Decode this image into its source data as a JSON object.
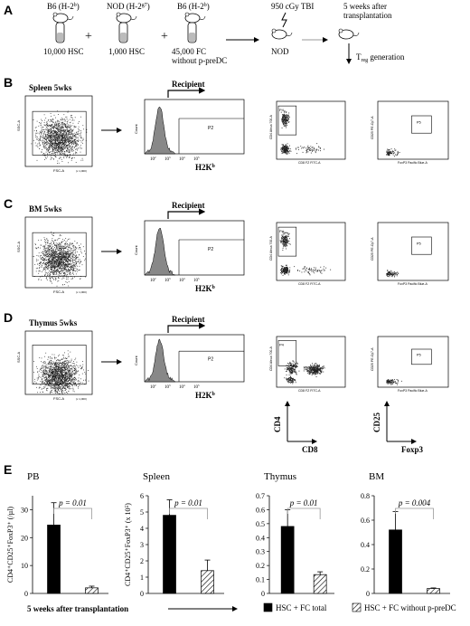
{
  "panel_a": {
    "letter": "A",
    "donor1": {
      "strain": "B6 (H-2",
      "sup": "b",
      "close": ")",
      "cells": "10,000 HSC"
    },
    "donor2": {
      "strain": "NOD (H-2",
      "sup": "g7",
      "close": ")",
      "cells": "1,000 HSC"
    },
    "donor3": {
      "strain": "B6 (H-2",
      "sup": "b",
      "close": ")",
      "cells_line1": "45,000 FC",
      "cells_line2": "without p-preDC"
    },
    "plus": "+",
    "tbi": "950 cGy TBI",
    "recipient": "NOD",
    "timepoint_line1": "5 weeks after",
    "timepoint_line2": "transplantation",
    "treg_T": "T",
    "treg_sub": "reg",
    "treg_rest": " generation"
  },
  "flow_rows": [
    {
      "letter": "B",
      "title": "Spleen 5wks"
    },
    {
      "letter": "C",
      "title": "BM 5wks"
    },
    {
      "letter": "D",
      "title": "Thymus 5wks"
    }
  ],
  "flow_labels": {
    "recipient": "Recipient",
    "h2k": "H2K",
    "h2k_sup": "b",
    "gate_p2": "P2",
    "gate_p4": "P4",
    "gate_p5": "P5",
    "ssc": "SSC-A",
    "fsc": "FSC-A",
    "count": "Count",
    "cd4_axis_small": "CD4 Alexa 700-A",
    "cd8_axis_small": "CD8 FZ FITC-A",
    "cd25_axis_small": "CD25 PE-Cy7-A",
    "foxp3_axis_small": "FoxP3 Pacific Blue-A",
    "x1000": "(x 1,000)",
    "cd4": "CD4",
    "cd8": "CD8",
    "cd25": "CD25",
    "foxp3": "Foxp3",
    "decade_ticks": [
      "10",
      "10",
      "10",
      "10"
    ],
    "decade_exps": [
      "2",
      "3",
      "4",
      "5"
    ]
  },
  "panel_e": {
    "letter": "E",
    "xaxis_note": "5 weeks after transplantation",
    "legend": [
      {
        "label": "HSC + FC total",
        "color": "#000000",
        "pattern": "solid"
      },
      {
        "label": "HSC + FC without p-preDC",
        "color": "#ffffff",
        "pattern": "hatched"
      }
    ]
  },
  "chart_data": [
    {
      "type": "bar",
      "title": "PB",
      "ylabel": "CD4⁺CD25⁺FoxP3⁺ (/µl)",
      "ylim": [
        0,
        35
      ],
      "yticks": [
        0,
        10,
        20,
        30
      ],
      "series": [
        {
          "name": "HSC + FC total",
          "values": [
            24.5
          ],
          "error": [
            8
          ]
        },
        {
          "name": "HSC + FC without p-preDC",
          "values": [
            2
          ],
          "error": [
            0.6
          ]
        }
      ],
      "annotation": "p = 0.01"
    },
    {
      "type": "bar",
      "title": "Spleen",
      "ylabel": "CD4⁺CD25⁺FoxP3⁺ (x 10⁵)",
      "ylim": [
        0,
        6
      ],
      "yticks": [
        0,
        1,
        2,
        3,
        4,
        5,
        6
      ],
      "series": [
        {
          "name": "HSC + FC total",
          "values": [
            4.8
          ],
          "error": [
            0.95
          ]
        },
        {
          "name": "HSC + FC without p-preDC",
          "values": [
            1.4
          ],
          "error": [
            0.65
          ]
        }
      ],
      "annotation": "p = 0.01"
    },
    {
      "type": "bar",
      "title": "Thymus",
      "ylabel": "",
      "ylim": [
        0,
        0.7
      ],
      "yticks": [
        0,
        0.1,
        0.2,
        0.3,
        0.4,
        0.5,
        0.6,
        0.7
      ],
      "series": [
        {
          "name": "HSC + FC total",
          "values": [
            0.48
          ],
          "error": [
            0.12
          ]
        },
        {
          "name": "HSC + FC without p-preDC",
          "values": [
            0.135
          ],
          "error": [
            0.02
          ]
        }
      ],
      "annotation": "p = 0.01"
    },
    {
      "type": "bar",
      "title": "BM",
      "ylabel": "",
      "ylim": [
        0,
        0.8
      ],
      "yticks": [
        0,
        0.2,
        0.4,
        0.6,
        0.8
      ],
      "series": [
        {
          "name": "HSC + FC total",
          "values": [
            0.52
          ],
          "error": [
            0.15
          ]
        },
        {
          "name": "HSC + FC without p-preDC",
          "values": [
            0.04
          ],
          "error": [
            0.005
          ]
        }
      ],
      "annotation": "p = 0.004"
    }
  ]
}
